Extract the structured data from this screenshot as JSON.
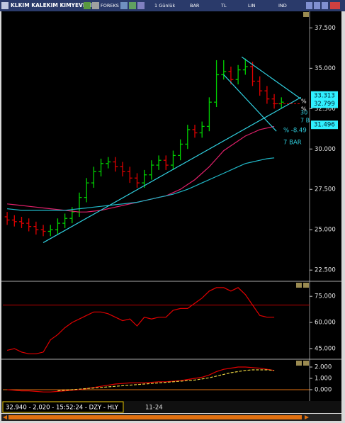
{
  "title_bar": {
    "symbol": "KLKIM KALEKIM KIMYEVI M",
    "source": "FOREKS",
    "period": "1 Günlük",
    "chart_style": "BAR",
    "currency": "TL",
    "scale": "LIN",
    "indicators": "IND"
  },
  "price_panel": {
    "type": "ohlc",
    "xlim": [
      -0.6,
      41.9
    ],
    "ylim": [
      21.85,
      38.35
    ],
    "yticks": [
      {
        "value": 37.5,
        "label": "37.500"
      },
      {
        "value": 35,
        "label": "35.000"
      },
      {
        "value": 32.5,
        "label": "32.500"
      },
      {
        "value": 30,
        "label": "30.000"
      },
      {
        "value": 27.5,
        "label": "27.500"
      },
      {
        "value": 25,
        "label": "25.000"
      },
      {
        "value": 22.5,
        "label": "22.500"
      }
    ],
    "up_color": "#00d000",
    "down_color": "#e00000",
    "open": [
      25.8,
      25.6,
      25.5,
      25.4,
      25.2,
      25.0,
      24.9,
      25.0,
      25.4,
      25.7,
      26.1,
      27.0,
      27.9,
      28.6,
      29.1,
      29.2,
      28.9,
      28.6,
      28.2,
      27.9,
      28.4,
      29.0,
      29.3,
      29.0,
      29.6,
      30.3,
      31.2,
      31.0,
      31.4,
      32.9,
      34.6,
      34.8,
      34.3,
      34.9,
      35.1,
      34.2,
      33.6,
      33.1,
      32.8
    ],
    "high": [
      26.1,
      25.9,
      25.8,
      25.7,
      25.5,
      25.3,
      25.3,
      25.7,
      26.0,
      26.4,
      27.3,
      28.2,
      28.9,
      29.4,
      29.5,
      29.5,
      29.2,
      28.9,
      28.5,
      28.7,
      29.3,
      29.6,
      29.6,
      29.9,
      30.6,
      31.5,
      31.5,
      31.7,
      33.2,
      35.5,
      35.5,
      35.1,
      35.2,
      35.6,
      35.4,
      34.5,
      33.9,
      33.4,
      33.2
    ],
    "low": [
      25.3,
      25.2,
      25.1,
      24.9,
      24.7,
      24.6,
      24.6,
      24.7,
      25.1,
      25.4,
      25.8,
      26.7,
      27.6,
      28.3,
      28.8,
      28.6,
      28.3,
      27.9,
      27.6,
      27.6,
      28.1,
      28.7,
      28.7,
      28.7,
      29.3,
      30.0,
      30.7,
      30.7,
      31.1,
      32.6,
      34.3,
      34.0,
      34.0,
      34.6,
      33.9,
      33.3,
      32.8,
      32.5,
      32.5
    ],
    "close": [
      25.6,
      25.5,
      25.4,
      25.2,
      25.0,
      24.9,
      25.0,
      25.4,
      25.7,
      26.1,
      27.0,
      27.9,
      28.6,
      29.1,
      29.2,
      28.9,
      28.6,
      28.2,
      27.9,
      28.4,
      29.0,
      29.3,
      29.0,
      29.6,
      30.3,
      31.2,
      31.0,
      31.4,
      32.9,
      34.6,
      34.8,
      34.3,
      34.9,
      35.1,
      34.2,
      33.6,
      33.1,
      32.8,
      32.9
    ],
    "moving_averages": [
      {
        "color": "#e0206a",
        "values": [
          26.6,
          26.55,
          26.5,
          26.45,
          26.4,
          26.35,
          26.3,
          26.25,
          26.2,
          26.15,
          26.1,
          26.1,
          26.15,
          26.2,
          26.3,
          26.4,
          26.5,
          26.6,
          26.7,
          26.8,
          26.9,
          27.0,
          27.1,
          27.3,
          27.5,
          27.8,
          28.1,
          28.5,
          28.9,
          29.4,
          29.9,
          30.2,
          30.5,
          30.8,
          31.0,
          31.2,
          31.3,
          31.4,
          null
        ]
      },
      {
        "color": "#20b8c8",
        "values": [
          26.3,
          26.25,
          26.2,
          26.2,
          26.2,
          26.2,
          26.2,
          26.2,
          26.2,
          26.25,
          26.3,
          26.35,
          26.4,
          26.45,
          26.5,
          26.55,
          26.6,
          26.65,
          26.7,
          26.8,
          26.9,
          27.0,
          27.1,
          27.2,
          27.35,
          27.5,
          27.7,
          27.9,
          28.1,
          28.3,
          28.5,
          28.7,
          28.9,
          29.1,
          29.2,
          29.3,
          29.4,
          29.45,
          null
        ]
      }
    ],
    "trendline_color": "#30d0e0",
    "trendlines": [
      {
        "x": [
          5,
          40.7
        ],
        "y": [
          24.2,
          33.2
        ]
      },
      {
        "x": [
          32.5,
          40.7
        ],
        "y": [
          35.7,
          33.1
        ]
      },
      {
        "x": [
          30,
          37.3
        ],
        "y": [
          34.6,
          31.1
        ]
      }
    ],
    "price_labels": [
      {
        "value": 33.313,
        "label": "33.313"
      },
      {
        "value": 32.799,
        "label": "32.799"
      },
      {
        "value": 31.496,
        "label": "31.496"
      }
    ],
    "annotations": {
      "pct_1": "%",
      "pct_2": "%",
      "num": "30",
      "bars_short": "7 B",
      "change": "% -8.49",
      "bars": "7 BAR"
    }
  },
  "rsi_panel": {
    "ylim": [
      39.7,
      82.4
    ],
    "yticks": [
      {
        "value": 75,
        "label": "75.000"
      },
      {
        "value": 60,
        "label": "60.000"
      },
      {
        "value": 45,
        "label": "45.000"
      }
    ],
    "level": 70,
    "color": "#e00000",
    "values": [
      44,
      45,
      43,
      42,
      42,
      43,
      50,
      53,
      57,
      60,
      62,
      64,
      66,
      66,
      65,
      63,
      61,
      62,
      58,
      63,
      62,
      63,
      63,
      67,
      68,
      68,
      71,
      74,
      78,
      80,
      80,
      78,
      80,
      76,
      70,
      64,
      63,
      63,
      null
    ]
  },
  "macd_panel": {
    "ylim": [
      -0.94,
      2.5
    ],
    "yticks": [
      {
        "value": 2,
        "label": "2.000"
      },
      {
        "value": 1,
        "label": "1.000"
      },
      {
        "value": 0,
        "label": "0.000"
      }
    ],
    "macd": {
      "color": "#e00000",
      "values": [
        0.0,
        -0.05,
        -0.1,
        -0.1,
        -0.15,
        -0.2,
        -0.2,
        -0.15,
        -0.1,
        -0.05,
        0.0,
        0.1,
        0.2,
        0.3,
        0.4,
        0.5,
        0.55,
        0.6,
        0.6,
        0.6,
        0.65,
        0.7,
        0.7,
        0.75,
        0.8,
        0.9,
        1.0,
        1.1,
        1.3,
        1.6,
        1.8,
        1.9,
        2.0,
        2.0,
        1.95,
        1.9,
        1.8,
        1.7,
        null
      ]
    },
    "signal": {
      "color": "#e8d040",
      "values": [
        null,
        null,
        null,
        null,
        null,
        null,
        null,
        -0.1,
        -0.05,
        0.0,
        0.05,
        0.1,
        0.15,
        0.2,
        0.25,
        0.3,
        0.35,
        0.4,
        0.45,
        0.5,
        0.55,
        0.6,
        0.65,
        0.7,
        0.75,
        0.8,
        0.85,
        0.95,
        1.05,
        1.2,
        1.35,
        1.5,
        1.6,
        1.7,
        1.75,
        1.75,
        1.75,
        1.7,
        null
      ]
    }
  },
  "status_bar": {
    "quote": "32.940 - 2,020 - 15:52:24 - DZY - HLY",
    "date": "11-24"
  }
}
